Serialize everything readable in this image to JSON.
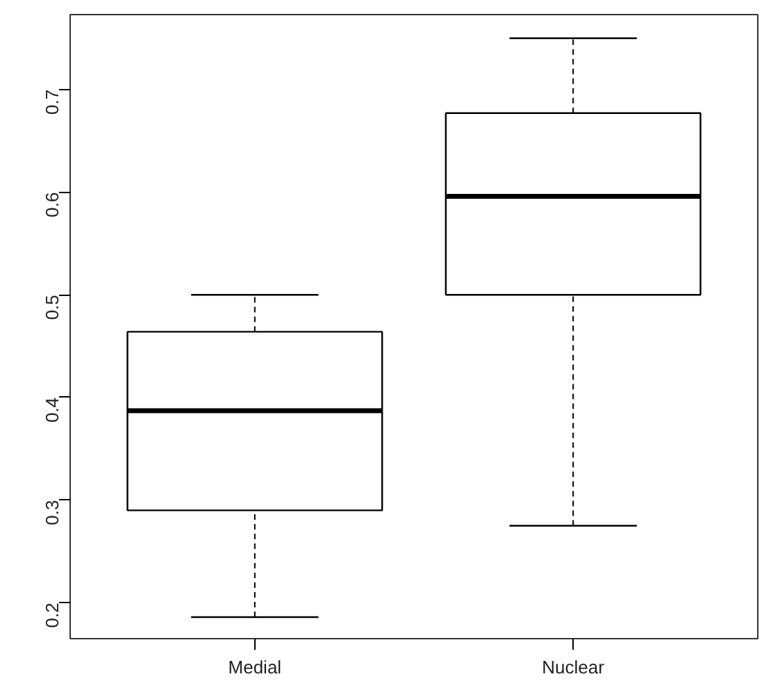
{
  "chart_data": {
    "type": "box",
    "categories": [
      "Medial",
      "Nuclear"
    ],
    "boxes": [
      {
        "low": 0.186,
        "q1": 0.29,
        "median": 0.387,
        "q3": 0.464,
        "high": 0.5
      },
      {
        "low": 0.275,
        "q1": 0.5,
        "median": 0.596,
        "q3": 0.677,
        "high": 0.75
      }
    ],
    "color": "#ffffff",
    "ylim": [
      0.165,
      0.773
    ],
    "yticks": [
      0.2,
      0.3,
      0.4,
      0.5,
      0.6,
      0.7
    ],
    "grid": false,
    "line_style": "dashed"
  }
}
